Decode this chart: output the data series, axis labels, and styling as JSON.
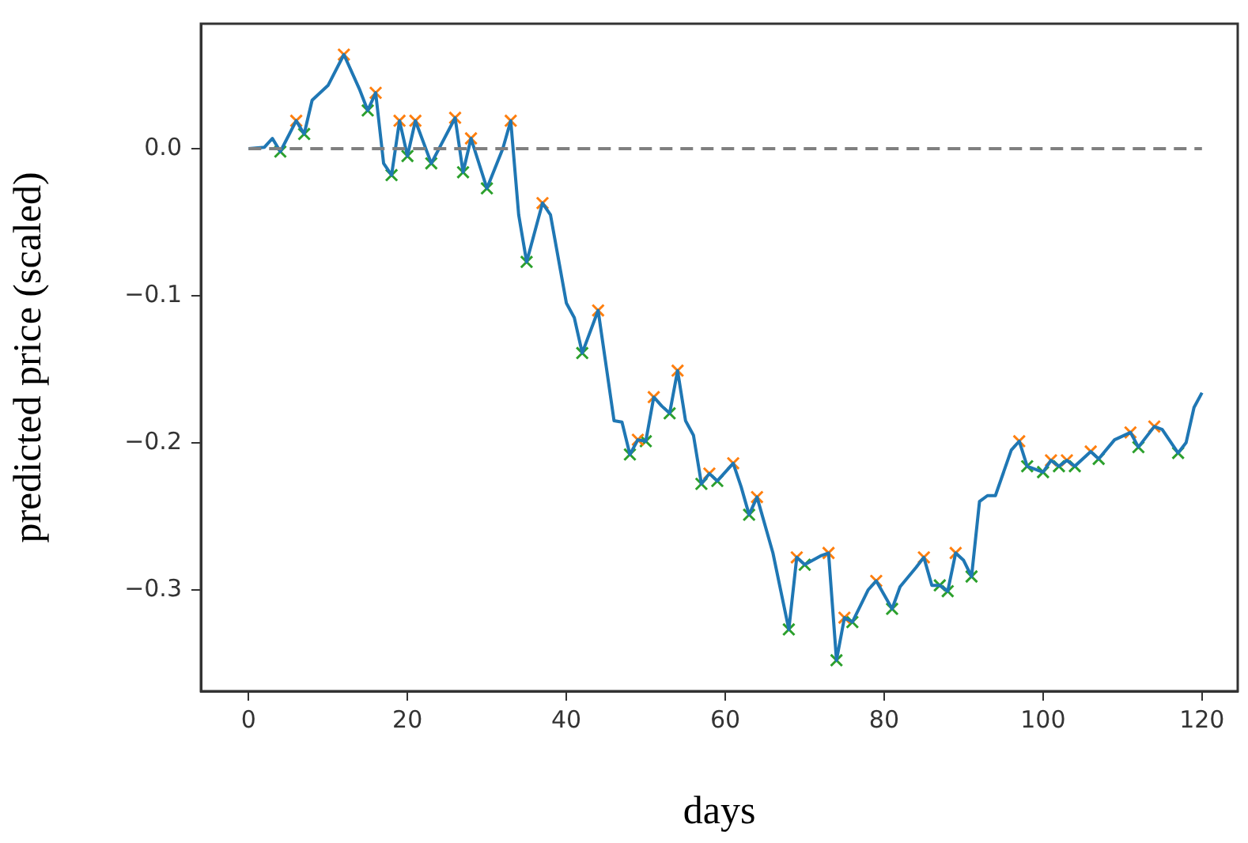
{
  "chart_data": {
    "type": "line",
    "xlabel": "days",
    "ylabel": "predicted price (scaled)",
    "xlim": [
      -6,
      124.5
    ],
    "ylim": [
      -0.369,
      0.085
    ],
    "xticks": [
      0,
      20,
      40,
      60,
      80,
      100,
      120
    ],
    "yticks": [
      {
        "value": 0,
        "label": "0.0"
      },
      {
        "value": -0.1,
        "label": "−0.1"
      },
      {
        "value": -0.2,
        "label": "−0.2"
      },
      {
        "value": -0.3,
        "label": "−0.3"
      }
    ],
    "grid": false,
    "legend": false,
    "ref_lines": [
      {
        "axis": "y",
        "value": 0,
        "color": "#808080",
        "line_style": "dashed"
      }
    ],
    "series": [
      {
        "type": "line",
        "color": "#1f77b4",
        "marker": "none",
        "line_style": "solid",
        "x": [
          0,
          2,
          3,
          4,
          6,
          7,
          8,
          10,
          12,
          14,
          15,
          16,
          17,
          18,
          19,
          20,
          21,
          23,
          26,
          27,
          28,
          30,
          32,
          33,
          34,
          35,
          37,
          38,
          40,
          41,
          42,
          44,
          46,
          47,
          48,
          49,
          50,
          51,
          52,
          53,
          54,
          55,
          56,
          57,
          58,
          59,
          61,
          62,
          63,
          64,
          66,
          68,
          69,
          70,
          72,
          73,
          74,
          75,
          76,
          78,
          79,
          81,
          82,
          84,
          85,
          86,
          87,
          88,
          89,
          90,
          91,
          92,
          93,
          94,
          96,
          97,
          98,
          100,
          101,
          102,
          103,
          104,
          106,
          107,
          109,
          111,
          112,
          114,
          115,
          117,
          118,
          119,
          120
        ],
        "values": [
          0.0,
          0.001,
          0.007,
          -0.002,
          0.019,
          0.01,
          0.033,
          0.043,
          0.064,
          0.04,
          0.026,
          0.038,
          -0.01,
          -0.018,
          0.019,
          -0.005,
          0.019,
          -0.01,
          0.021,
          -0.016,
          0.007,
          -0.027,
          0.0,
          0.019,
          -0.045,
          -0.077,
          -0.037,
          -0.045,
          -0.105,
          -0.115,
          -0.139,
          -0.11,
          -0.185,
          -0.186,
          -0.208,
          -0.198,
          -0.199,
          -0.169,
          -0.175,
          -0.18,
          -0.151,
          -0.185,
          -0.195,
          -0.228,
          -0.221,
          -0.226,
          -0.214,
          -0.23,
          -0.249,
          -0.237,
          -0.275,
          -0.327,
          -0.278,
          -0.283,
          -0.277,
          -0.275,
          -0.348,
          -0.319,
          -0.322,
          -0.3,
          -0.294,
          -0.313,
          -0.298,
          -0.285,
          -0.278,
          -0.297,
          -0.297,
          -0.301,
          -0.275,
          -0.28,
          -0.291,
          -0.24,
          -0.236,
          -0.236,
          -0.205,
          -0.199,
          -0.216,
          -0.22,
          -0.212,
          -0.216,
          -0.212,
          -0.216,
          -0.206,
          -0.211,
          -0.198,
          -0.193,
          -0.203,
          -0.189,
          -0.191,
          -0.207,
          -0.2,
          -0.176,
          -0.166
        ]
      },
      {
        "type": "scatter",
        "color": "#ff7f0e",
        "marker": "cross",
        "x": [
          6,
          12,
          16,
          19,
          21,
          26,
          28,
          33,
          37,
          44,
          49,
          51,
          54,
          58,
          61,
          64,
          69,
          73,
          75,
          79,
          85,
          89,
          97,
          101,
          103,
          106,
          111,
          114
        ],
        "values": [
          0.019,
          0.064,
          0.038,
          0.019,
          0.019,
          0.021,
          0.007,
          0.019,
          -0.037,
          -0.11,
          -0.198,
          -0.169,
          -0.151,
          -0.221,
          -0.214,
          -0.237,
          -0.278,
          -0.275,
          -0.319,
          -0.294,
          -0.278,
          -0.275,
          -0.199,
          -0.212,
          -0.212,
          -0.206,
          -0.193,
          -0.189
        ]
      },
      {
        "type": "scatter",
        "color": "#2ca02c",
        "marker": "cross",
        "x": [
          4,
          7,
          15,
          18,
          20,
          23,
          27,
          30,
          35,
          42,
          48,
          50,
          53,
          57,
          59,
          63,
          68,
          70,
          74,
          76,
          81,
          87,
          88,
          91,
          98,
          100,
          102,
          104,
          107,
          112,
          117
        ],
        "values": [
          -0.002,
          0.01,
          0.026,
          -0.018,
          -0.005,
          -0.01,
          -0.016,
          -0.027,
          -0.077,
          -0.139,
          -0.208,
          -0.199,
          -0.18,
          -0.228,
          -0.226,
          -0.249,
          -0.327,
          -0.283,
          -0.348,
          -0.322,
          -0.313,
          -0.297,
          -0.301,
          -0.291,
          -0.216,
          -0.22,
          -0.216,
          -0.216,
          -0.211,
          -0.203,
          -0.207
        ]
      }
    ]
  }
}
